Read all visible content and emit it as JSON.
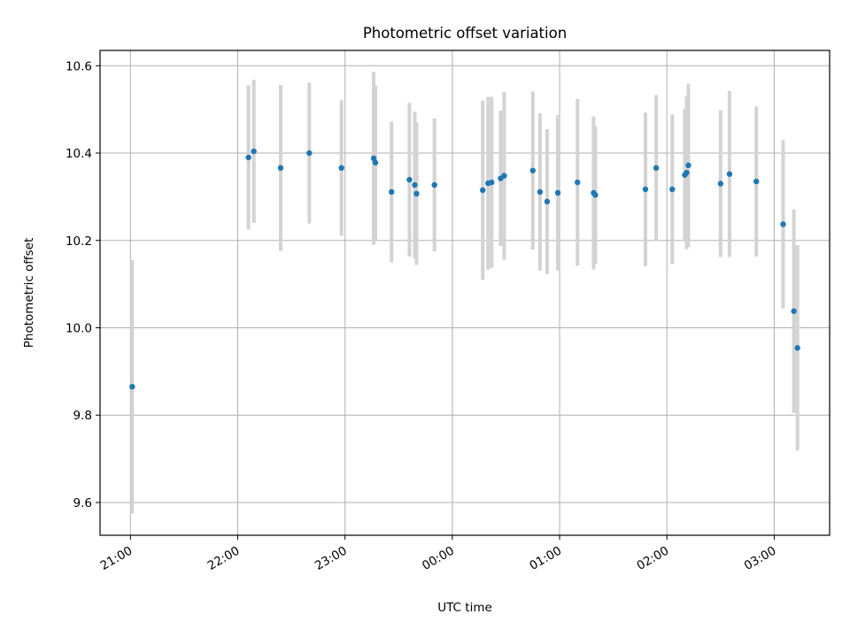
{
  "chart_data": {
    "type": "scatter",
    "title": "Photometric offset variation",
    "xlabel": "UTC time",
    "ylabel": "Photometric offset",
    "x_tick_labels": [
      "21:00",
      "22:00",
      "23:00",
      "00:00",
      "01:00",
      "02:00",
      "03:00"
    ],
    "x_ticks": [
      "21:00",
      "22:00",
      "23:00",
      "00:00",
      "01:00",
      "02:00",
      "03:00"
    ],
    "x_axis_unit": "UTC time of night (HH:MM), starting 21:00",
    "xlim": [
      "20:43",
      "03:31"
    ],
    "ylim": [
      9.525,
      10.635
    ],
    "y_ticks": [
      9.6,
      9.8,
      10.0,
      10.2,
      10.4,
      10.6
    ],
    "y_tick_labels": [
      "9.6",
      "9.8",
      "10.0",
      "10.2",
      "10.4",
      "10.6"
    ],
    "grid": true,
    "colors": {
      "points": "#1f77b4",
      "errorbars": "#d3d3d3",
      "grid": "#b0b0b0"
    },
    "series": [
      {
        "points": [
          {
            "x": "21:01",
            "y": 9.865,
            "err": 0.29
          },
          {
            "x": "22:06",
            "y": 10.39,
            "err": 0.165
          },
          {
            "x": "22:09",
            "y": 10.404,
            "err": 0.164
          },
          {
            "x": "22:24",
            "y": 10.366,
            "err": 0.19
          },
          {
            "x": "22:40",
            "y": 10.4,
            "err": 0.161
          },
          {
            "x": "22:58",
            "y": 10.366,
            "err": 0.155
          },
          {
            "x": "23:16",
            "y": 10.388,
            "err": 0.198
          },
          {
            "x": "23:17",
            "y": 10.378,
            "err": 0.176
          },
          {
            "x": "23:26",
            "y": 10.311,
            "err": 0.161
          },
          {
            "x": "23:36",
            "y": 10.339,
            "err": 0.176
          },
          {
            "x": "23:39",
            "y": 10.327,
            "err": 0.168
          },
          {
            "x": "23:40",
            "y": 10.307,
            "err": 0.163
          },
          {
            "x": "23:50",
            "y": 10.327,
            "err": 0.152
          },
          {
            "x": "00:17",
            "y": 10.315,
            "err": 0.205
          },
          {
            "x": "00:20",
            "y": 10.331,
            "err": 0.198
          },
          {
            "x": "00:22",
            "y": 10.333,
            "err": 0.196
          },
          {
            "x": "00:27",
            "y": 10.342,
            "err": 0.155
          },
          {
            "x": "00:29",
            "y": 10.348,
            "err": 0.192
          },
          {
            "x": "00:45",
            "y": 10.36,
            "err": 0.181
          },
          {
            "x": "00:49",
            "y": 10.311,
            "err": 0.18
          },
          {
            "x": "00:53",
            "y": 10.289,
            "err": 0.166
          },
          {
            "x": "00:59",
            "y": 10.309,
            "err": 0.178
          },
          {
            "x": "01:10",
            "y": 10.333,
            "err": 0.191
          },
          {
            "x": "01:19",
            "y": 10.309,
            "err": 0.175
          },
          {
            "x": "01:20",
            "y": 10.304,
            "err": 0.157
          },
          {
            "x": "01:48",
            "y": 10.317,
            "err": 0.176
          },
          {
            "x": "01:54",
            "y": 10.366,
            "err": 0.167
          },
          {
            "x": "02:03",
            "y": 10.317,
            "err": 0.171
          },
          {
            "x": "02:10",
            "y": 10.35,
            "err": 0.15
          },
          {
            "x": "02:11",
            "y": 10.355,
            "err": 0.175
          },
          {
            "x": "02:12",
            "y": 10.372,
            "err": 0.187
          },
          {
            "x": "02:30",
            "y": 10.33,
            "err": 0.168
          },
          {
            "x": "02:35",
            "y": 10.352,
            "err": 0.19
          },
          {
            "x": "02:50",
            "y": 10.335,
            "err": 0.172
          },
          {
            "x": "03:05",
            "y": 10.237,
            "err": 0.193
          },
          {
            "x": "03:11",
            "y": 10.038,
            "err": 0.233
          },
          {
            "x": "03:13",
            "y": 9.954,
            "err": 0.235
          }
        ]
      }
    ]
  }
}
